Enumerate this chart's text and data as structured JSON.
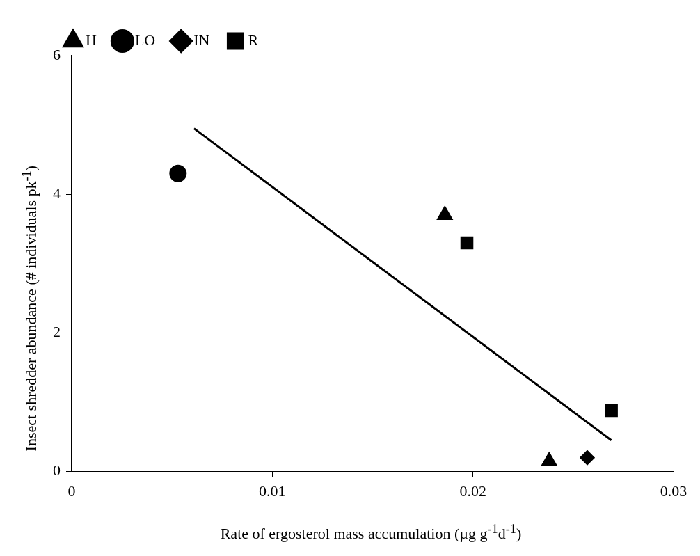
{
  "chart_data": {
    "type": "scatter",
    "xlabel": "Rate of ergosterol mass accumulation (µg g$^{-1}$d$^{-1}$)",
    "ylabel": "Insect shredder abundance  (# individuals  pk$^{-1}$)",
    "xlim": [
      0,
      0.03
    ],
    "xticks": [
      0,
      0.01,
      0.02,
      0.03
    ],
    "ylim": [
      0,
      6
    ],
    "yticks": [
      0,
      2,
      4,
      6
    ],
    "grid": false,
    "legend": "top",
    "series": [
      {
        "name": "H",
        "color": "#000000",
        "marker": "triangle",
        "x": [
          0.0186,
          0.0238
        ],
        "values": [
          3.7,
          0.15
        ]
      },
      {
        "name": "LO",
        "color": "#000000",
        "marker": "circle",
        "x": [
          0.0053
        ],
        "values": [
          4.3
        ]
      },
      {
        "name": "IN",
        "color": "#000000",
        "marker": "diamond",
        "x": [
          0.0257
        ],
        "values": [
          0.2
        ]
      },
      {
        "name": "R",
        "color": "#000000",
        "marker": "square",
        "x": [
          0.0197,
          0.0269
        ],
        "values": [
          3.3,
          0.88
        ]
      },
      {
        "type": "line",
        "color": "#000000",
        "marker": "none",
        "line_style": "solid",
        "x": [
          0.0061,
          0.0269
        ],
        "values": [
          4.95,
          0.45
        ]
      }
    ]
  }
}
